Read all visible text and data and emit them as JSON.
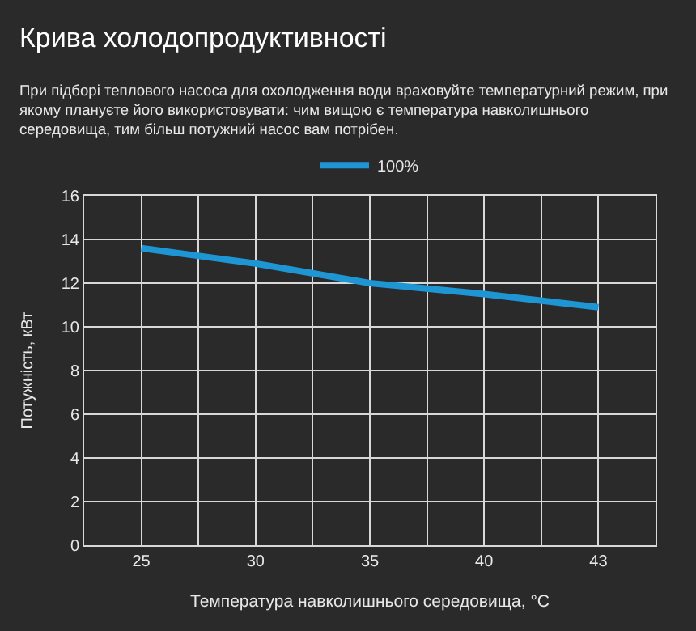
{
  "chart_data": {
    "type": "line",
    "title": "Крива холодопродуктивності",
    "subtitle": "При підборі теплового насоса для охолодження води враховуйте температурний режим, при\nякому плануєте його використовувати: чим вищою є температура навколишнього\nсередовища, тим більш потужний насос вам потрібен.",
    "xlabel": "Температура навколишнього середовища, °C",
    "ylabel": "Потужність, кВт",
    "categories": [
      "25",
      "30",
      "35",
      "40",
      "43"
    ],
    "series": [
      {
        "name": "100%",
        "color": "#1f96d4",
        "values": [
          13.6,
          12.9,
          12.0,
          11.5,
          10.9
        ]
      }
    ],
    "ylim": [
      0,
      16
    ],
    "yticks": [
      0,
      2,
      4,
      6,
      8,
      10,
      12,
      14,
      16
    ],
    "grid": true,
    "legend": "top",
    "marker": "none",
    "line_style": "solid"
  }
}
